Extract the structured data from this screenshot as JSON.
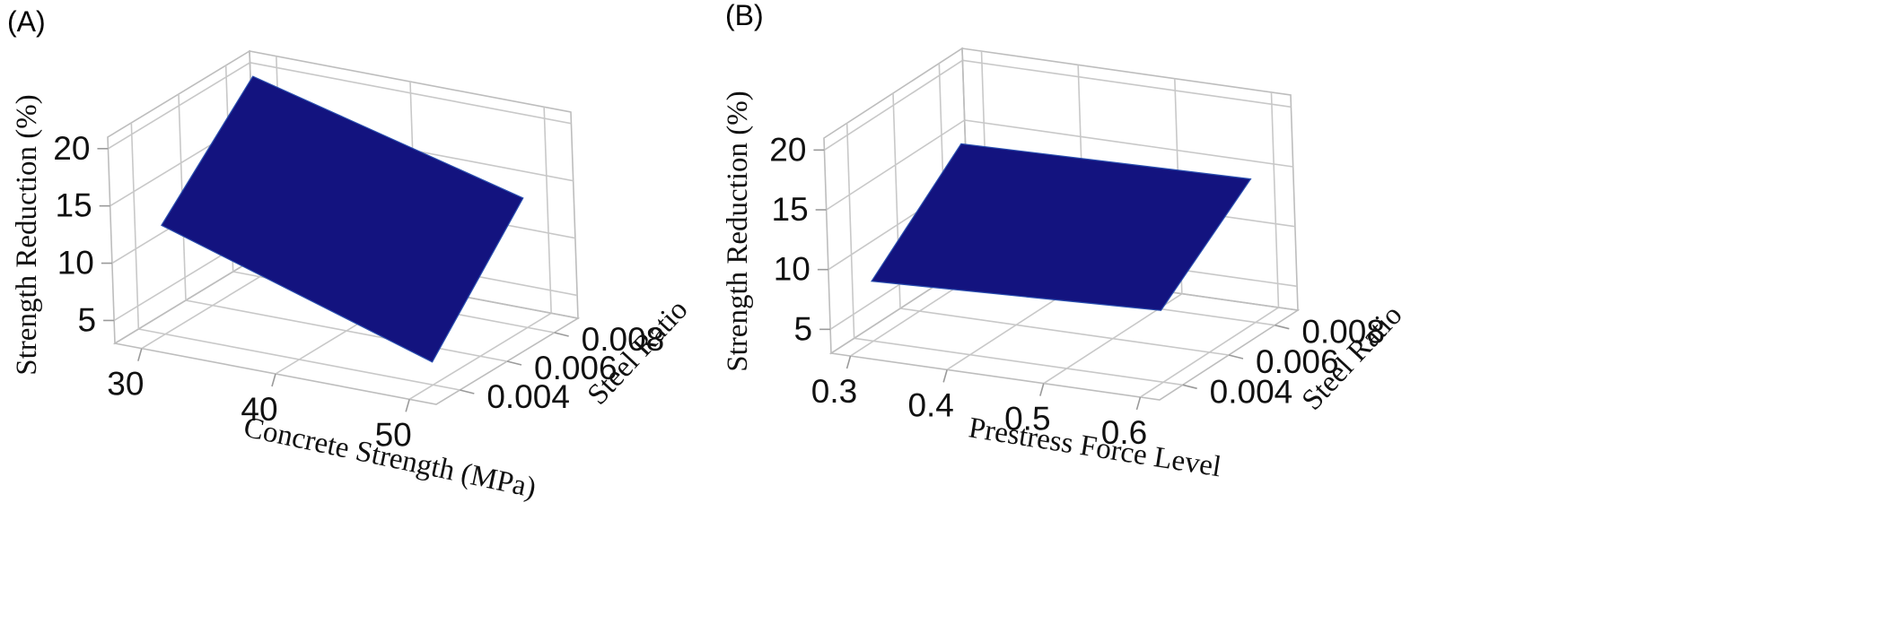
{
  "chart_data": [
    {
      "type": "surface",
      "panel_label": "(A)",
      "title": "",
      "xlabel": "Concrete Strength (MPa)",
      "ylabel": "Steel Ratio",
      "zlabel": "Strength Reduction (%)",
      "x_ticks": [
        30,
        40,
        50
      ],
      "y_ticks": [
        "0.004",
        "0.006",
        "0.008"
      ],
      "z_ticks": [
        5,
        10,
        15,
        20
      ],
      "xlim": [
        28,
        52
      ],
      "ylim": [
        0.003,
        0.009
      ],
      "zlim": [
        3,
        21
      ],
      "surface_color": "#13137f",
      "corners": [
        {
          "x": 30,
          "y": 0.004,
          "z": 12.5
        },
        {
          "x": 50,
          "y": 0.004,
          "z": 5.0
        },
        {
          "x": 50,
          "y": 0.008,
          "z": 14.3
        },
        {
          "x": 30,
          "y": 0.008,
          "z": 20.5
        }
      ]
    },
    {
      "type": "surface",
      "panel_label": "(B)",
      "title": "",
      "xlabel": "Prestress Force Level",
      "ylabel": "Steel Ratio",
      "zlabel": "Strength Reduction (%)",
      "x_ticks": [
        "0.3",
        "0.4",
        "0.5",
        "0.6"
      ],
      "y_ticks": [
        "0.004",
        "0.006",
        "0.008"
      ],
      "z_ticks": [
        5,
        10,
        15,
        20
      ],
      "xlim": [
        0.28,
        0.62
      ],
      "ylim": [
        0.003,
        0.009
      ],
      "zlim": [
        3,
        21
      ],
      "surface_color": "#13137f",
      "corners": [
        {
          "x": 0.3,
          "y": 0.004,
          "z": 8.0
        },
        {
          "x": 0.6,
          "y": 0.004,
          "z": 9.0
        },
        {
          "x": 0.6,
          "y": 0.008,
          "z": 15.0
        },
        {
          "x": 0.3,
          "y": 0.008,
          "z": 14.5
        }
      ]
    }
  ]
}
